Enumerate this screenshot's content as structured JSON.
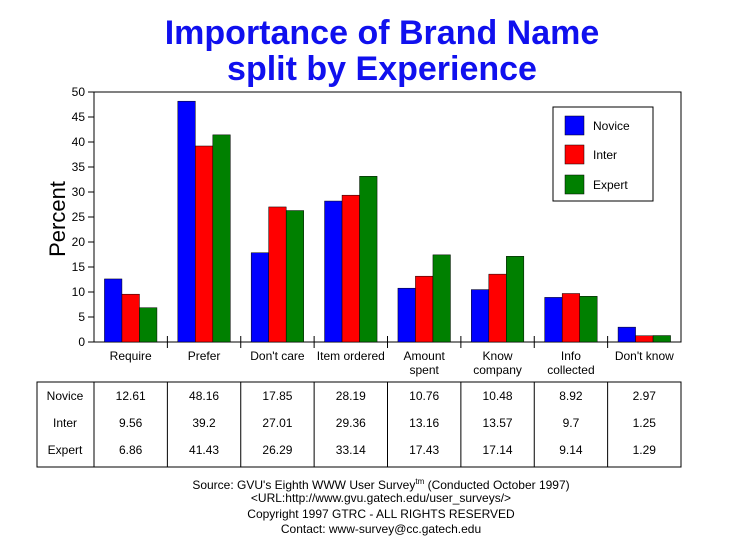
{
  "chart_data": {
    "type": "bar",
    "title": [
      "Importance of Brand Name",
      "split by Experience"
    ],
    "ylabel": "Percent",
    "xlabel": "",
    "ylim": [
      0,
      50
    ],
    "yticks": [
      0,
      5,
      10,
      15,
      20,
      25,
      30,
      35,
      40,
      45,
      50
    ],
    "categories": [
      [
        "Require"
      ],
      [
        "Prefer"
      ],
      [
        "Don't care"
      ],
      [
        "Item ordered"
      ],
      [
        "Amount",
        "spent"
      ],
      [
        "Know",
        "company"
      ],
      [
        "Info",
        "collected"
      ],
      [
        "Don't know"
      ]
    ],
    "series": [
      {
        "name": "Novice",
        "color": "#0000ff",
        "values": [
          12.61,
          48.16,
          17.85,
          28.19,
          10.76,
          10.48,
          8.92,
          2.97
        ]
      },
      {
        "name": "Inter",
        "color": "#ff0000",
        "values": [
          9.56,
          39.2,
          27.01,
          29.36,
          13.16,
          13.57,
          9.7,
          1.25
        ]
      },
      {
        "name": "Expert",
        "color": "#008000",
        "values": [
          6.86,
          41.43,
          26.29,
          33.14,
          17.43,
          17.14,
          9.14,
          1.29
        ]
      }
    ],
    "table": {
      "rows": [
        {
          "label": "Novice",
          "cells": [
            "12.61",
            "48.16",
            "17.85",
            "28.19",
            "10.76",
            "10.48",
            "8.92",
            "2.97"
          ]
        },
        {
          "label": "Inter",
          "cells": [
            "9.56",
            "39.2",
            "27.01",
            "29.36",
            "13.16",
            "13.57",
            "9.7",
            "1.25"
          ]
        },
        {
          "label": "Expert",
          "cells": [
            "6.86",
            "41.43",
            "26.29",
            "33.14",
            "17.43",
            "17.14",
            "9.14",
            "1.29"
          ]
        }
      ]
    },
    "grid": false,
    "legend_position": "top-right"
  },
  "footer": {
    "source_prefix": "Source: GVU's Eighth WWW User Survey",
    "source_tm": "tm",
    "source_suffix": " (Conducted October 1997)",
    "url": "<URL:http://www.gvu.gatech.edu/user_surveys/>",
    "copyright": "Copyright 1997 GTRC - ALL RIGHTS RESERVED",
    "contact": "Contact: www-survey@cc.gatech.edu"
  }
}
